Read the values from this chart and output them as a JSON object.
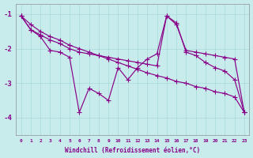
{
  "background_color": "#c8ecec",
  "grid_color": "#a8d8d8",
  "line_color": "#880088",
  "xlabel": "Windchill (Refroidissement éolien,°C)",
  "xlim": [
    -0.5,
    23.5
  ],
  "ylim": [
    -4.5,
    -0.7
  ],
  "yticks": [
    -4,
    -3,
    -2,
    -1
  ],
  "xticks": [
    0,
    1,
    2,
    3,
    4,
    5,
    6,
    7,
    8,
    9,
    10,
    11,
    12,
    13,
    14,
    15,
    16,
    17,
    18,
    19,
    20,
    21,
    22,
    23
  ],
  "series": [
    {
      "x": [
        0,
        1,
        2,
        3,
        4,
        5,
        6,
        7,
        8,
        9,
        10,
        11,
        12,
        13,
        14,
        15,
        16,
        17,
        18,
        19,
        20,
        21,
        22,
        23
      ],
      "y": [
        -1.05,
        -1.45,
        -1.65,
        -2.05,
        -2.1,
        -2.25,
        -3.85,
        -3.15,
        -3.3,
        -3.5,
        -2.55,
        -2.9,
        -2.55,
        -2.3,
        -2.15,
        -1.05,
        -1.25,
        -2.1,
        -2.2,
        -2.4,
        -2.55,
        -2.65,
        -2.9,
        -3.85
      ]
    },
    {
      "x": [
        0,
        1,
        2,
        3,
        4,
        5,
        6,
        7,
        8,
        9,
        10,
        11,
        12,
        13,
        14,
        15,
        16,
        17,
        18,
        19,
        20,
        21,
        22,
        23
      ],
      "y": [
        -1.05,
        -1.3,
        -1.5,
        -1.65,
        -1.75,
        -1.9,
        -2.0,
        -2.1,
        -2.2,
        -2.3,
        -2.4,
        -2.5,
        -2.6,
        -2.7,
        -2.78,
        -2.85,
        -2.95,
        -3.0,
        -3.1,
        -3.15,
        -3.25,
        -3.3,
        -3.4,
        -3.85
      ]
    },
    {
      "x": [
        0,
        1,
        2,
        3,
        4,
        5,
        6,
        7,
        8,
        9,
        10,
        11,
        12,
        13,
        14,
        15,
        16,
        17,
        18,
        19,
        20,
        21,
        22,
        23
      ],
      "y": [
        -1.05,
        -1.45,
        -1.6,
        -1.75,
        -1.85,
        -2.0,
        -2.1,
        -2.15,
        -2.2,
        -2.25,
        -2.3,
        -2.35,
        -2.4,
        -2.45,
        -2.5,
        -1.05,
        -1.3,
        -2.05,
        -2.1,
        -2.15,
        -2.2,
        -2.25,
        -2.3,
        -3.85
      ]
    }
  ]
}
